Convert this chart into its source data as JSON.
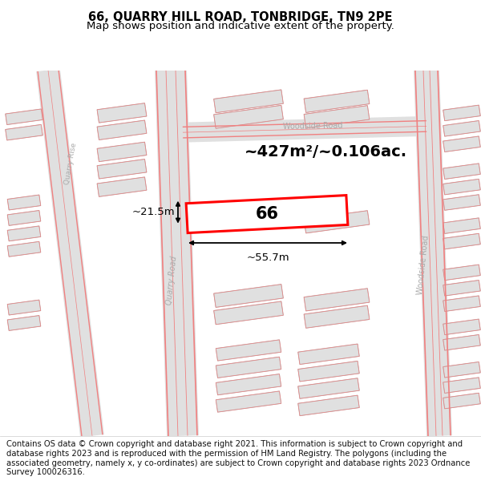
{
  "title": "66, QUARRY HILL ROAD, TONBRIDGE, TN9 2PE",
  "subtitle": "Map shows position and indicative extent of the property.",
  "footer": "Contains OS data © Crown copyright and database right 2021. This information is subject to Crown copyright and database rights 2023 and is reproduced with the permission of HM Land Registry. The polygons (including the associated geometry, namely x, y co-ordinates) are subject to Crown copyright and database rights 2023 Ordnance Survey 100026316.",
  "bg_color": "#ffffff",
  "road_fill": "#e8e8e8",
  "road_line": "#f08080",
  "road_line2": "#e05050",
  "building_fill": "#e0e0e0",
  "building_edge": "#c0c0c0",
  "building_red": "#e88080",
  "highlight_color": "#ff0000",
  "highlight_label": "66",
  "area_label": "~427m²/~0.106ac.",
  "width_label": "~55.7m",
  "height_label": "~21.5m",
  "title_fontsize": 10.5,
  "subtitle_fontsize": 9.5,
  "footer_fontsize": 7.2,
  "map_ybot": 0.13,
  "map_ytop": 0.86
}
